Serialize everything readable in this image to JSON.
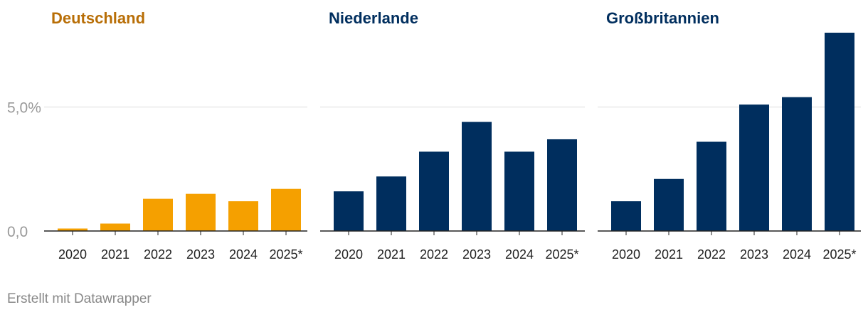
{
  "chart_data": [
    {
      "type": "bar",
      "title": "Deutschland",
      "title_color": "#b86e06",
      "bar_color": "#f5a000",
      "categories": [
        "2020",
        "2021",
        "2022",
        "2023",
        "2024",
        "2025*"
      ],
      "values": [
        0.1,
        0.3,
        1.3,
        1.5,
        1.2,
        1.7
      ],
      "ylim": [
        0,
        8
      ],
      "y_ticks": [
        {
          "value": 0,
          "label": "0,0"
        },
        {
          "value": 5,
          "label": "5,0%"
        }
      ],
      "grid": true
    },
    {
      "type": "bar",
      "title": "Niederlande",
      "title_color": "#002e5e",
      "bar_color": "#002e5e",
      "categories": [
        "2020",
        "2021",
        "2022",
        "2023",
        "2024",
        "2025*"
      ],
      "values": [
        1.6,
        2.2,
        3.2,
        4.4,
        3.2,
        3.7
      ],
      "ylim": [
        0,
        8
      ],
      "grid": true
    },
    {
      "type": "bar",
      "title": "Großbritannien",
      "title_color": "#002e5e",
      "bar_color": "#002e5e",
      "categories": [
        "2020",
        "2021",
        "2022",
        "2023",
        "2024",
        "2025*"
      ],
      "values": [
        1.2,
        2.1,
        3.6,
        5.1,
        5.4,
        8.0
      ],
      "ylim": [
        0,
        8
      ],
      "grid": true
    }
  ],
  "footer": "Erstellt mit Datawrapper"
}
